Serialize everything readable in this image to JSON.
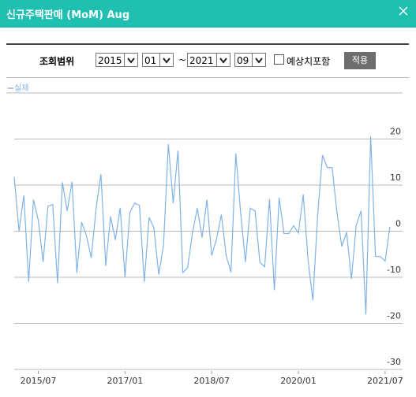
{
  "header": {
    "title": "신규주택판매 (MoM) Aug"
  },
  "filter": {
    "label": "조회범위",
    "start_year": "2015",
    "start_month": "01",
    "separator": "~",
    "end_year": "2021",
    "end_month": "09",
    "checkbox_label": "예상치포함",
    "button": "적용"
  },
  "chart_data": {
    "type": "line",
    "x": [
      "2015/02",
      "2015/03",
      "2015/04",
      "2015/05",
      "2015/06",
      "2015/07",
      "2015/08",
      "2015/09",
      "2015/10",
      "2015/11",
      "2015/12",
      "2016/01",
      "2016/02",
      "2016/03",
      "2016/04",
      "2016/05",
      "2016/06",
      "2016/07",
      "2016/08",
      "2016/09",
      "2016/10",
      "2016/11",
      "2016/12",
      "2017/01",
      "2017/02",
      "2017/03",
      "2017/04",
      "2017/05",
      "2017/06",
      "2017/07",
      "2017/08",
      "2017/09",
      "2017/10",
      "2017/11",
      "2017/12",
      "2018/01",
      "2018/02",
      "2018/03",
      "2018/04",
      "2018/05",
      "2018/06",
      "2018/07",
      "2018/08",
      "2018/09",
      "2018/10",
      "2018/11",
      "2018/12",
      "2019/01",
      "2019/02",
      "2019/03",
      "2019/04",
      "2019/05",
      "2019/06",
      "2019/07",
      "2019/08",
      "2019/09",
      "2019/10",
      "2019/11",
      "2019/12",
      "2020/01",
      "2020/02",
      "2020/03",
      "2020/04",
      "2020/05",
      "2020/06",
      "2020/07",
      "2020/08",
      "2020/09",
      "2020/10",
      "2020/11",
      "2020/12",
      "2021/01",
      "2021/02",
      "2021/03",
      "2021/04",
      "2021/05",
      "2021/06",
      "2021/07",
      "2021/08"
    ],
    "series": [
      {
        "name": "실제",
        "color": "#7fb3e6",
        "values": [
          11.8,
          0,
          7.8,
          -11,
          6.8,
          2.4,
          -6.7,
          5.4,
          5.8,
          -11.3,
          10.6,
          4.4,
          10.7,
          -9,
          2,
          -1,
          -5.8,
          5,
          12.4,
          -7.5,
          3.2,
          -1.9,
          5.1,
          -10,
          4,
          6.1,
          5.6,
          -11,
          3,
          0.7,
          -9.4,
          -3,
          18.9,
          6.1,
          17.5,
          -9,
          -7.9,
          -0.4,
          5,
          -1.4,
          6.8,
          -5.3,
          -1.7,
          3.6,
          -5.3,
          -8.9,
          16.9,
          4,
          -6.7,
          5,
          4.4,
          -6.8,
          -7.7,
          7,
          -12.8,
          7.3,
          -0.5,
          -0.5,
          1.2,
          -0.4,
          8,
          -6.2,
          -15,
          3.6,
          16.5,
          13.8,
          13.8,
          4,
          -3.3,
          -0.2,
          -10.4,
          1.3,
          4.4,
          -18.1,
          20.6,
          -5.5,
          -5.5,
          -6.5,
          1
        ]
      }
    ],
    "xticks": [
      "2015/07",
      "2017/01",
      "2018/07",
      "2020/01",
      "2021/07"
    ],
    "ylim": [
      -30,
      30
    ],
    "yticks": [
      -30,
      -20,
      -10,
      0,
      10,
      20
    ],
    "grid": true,
    "legend": "top-left"
  }
}
